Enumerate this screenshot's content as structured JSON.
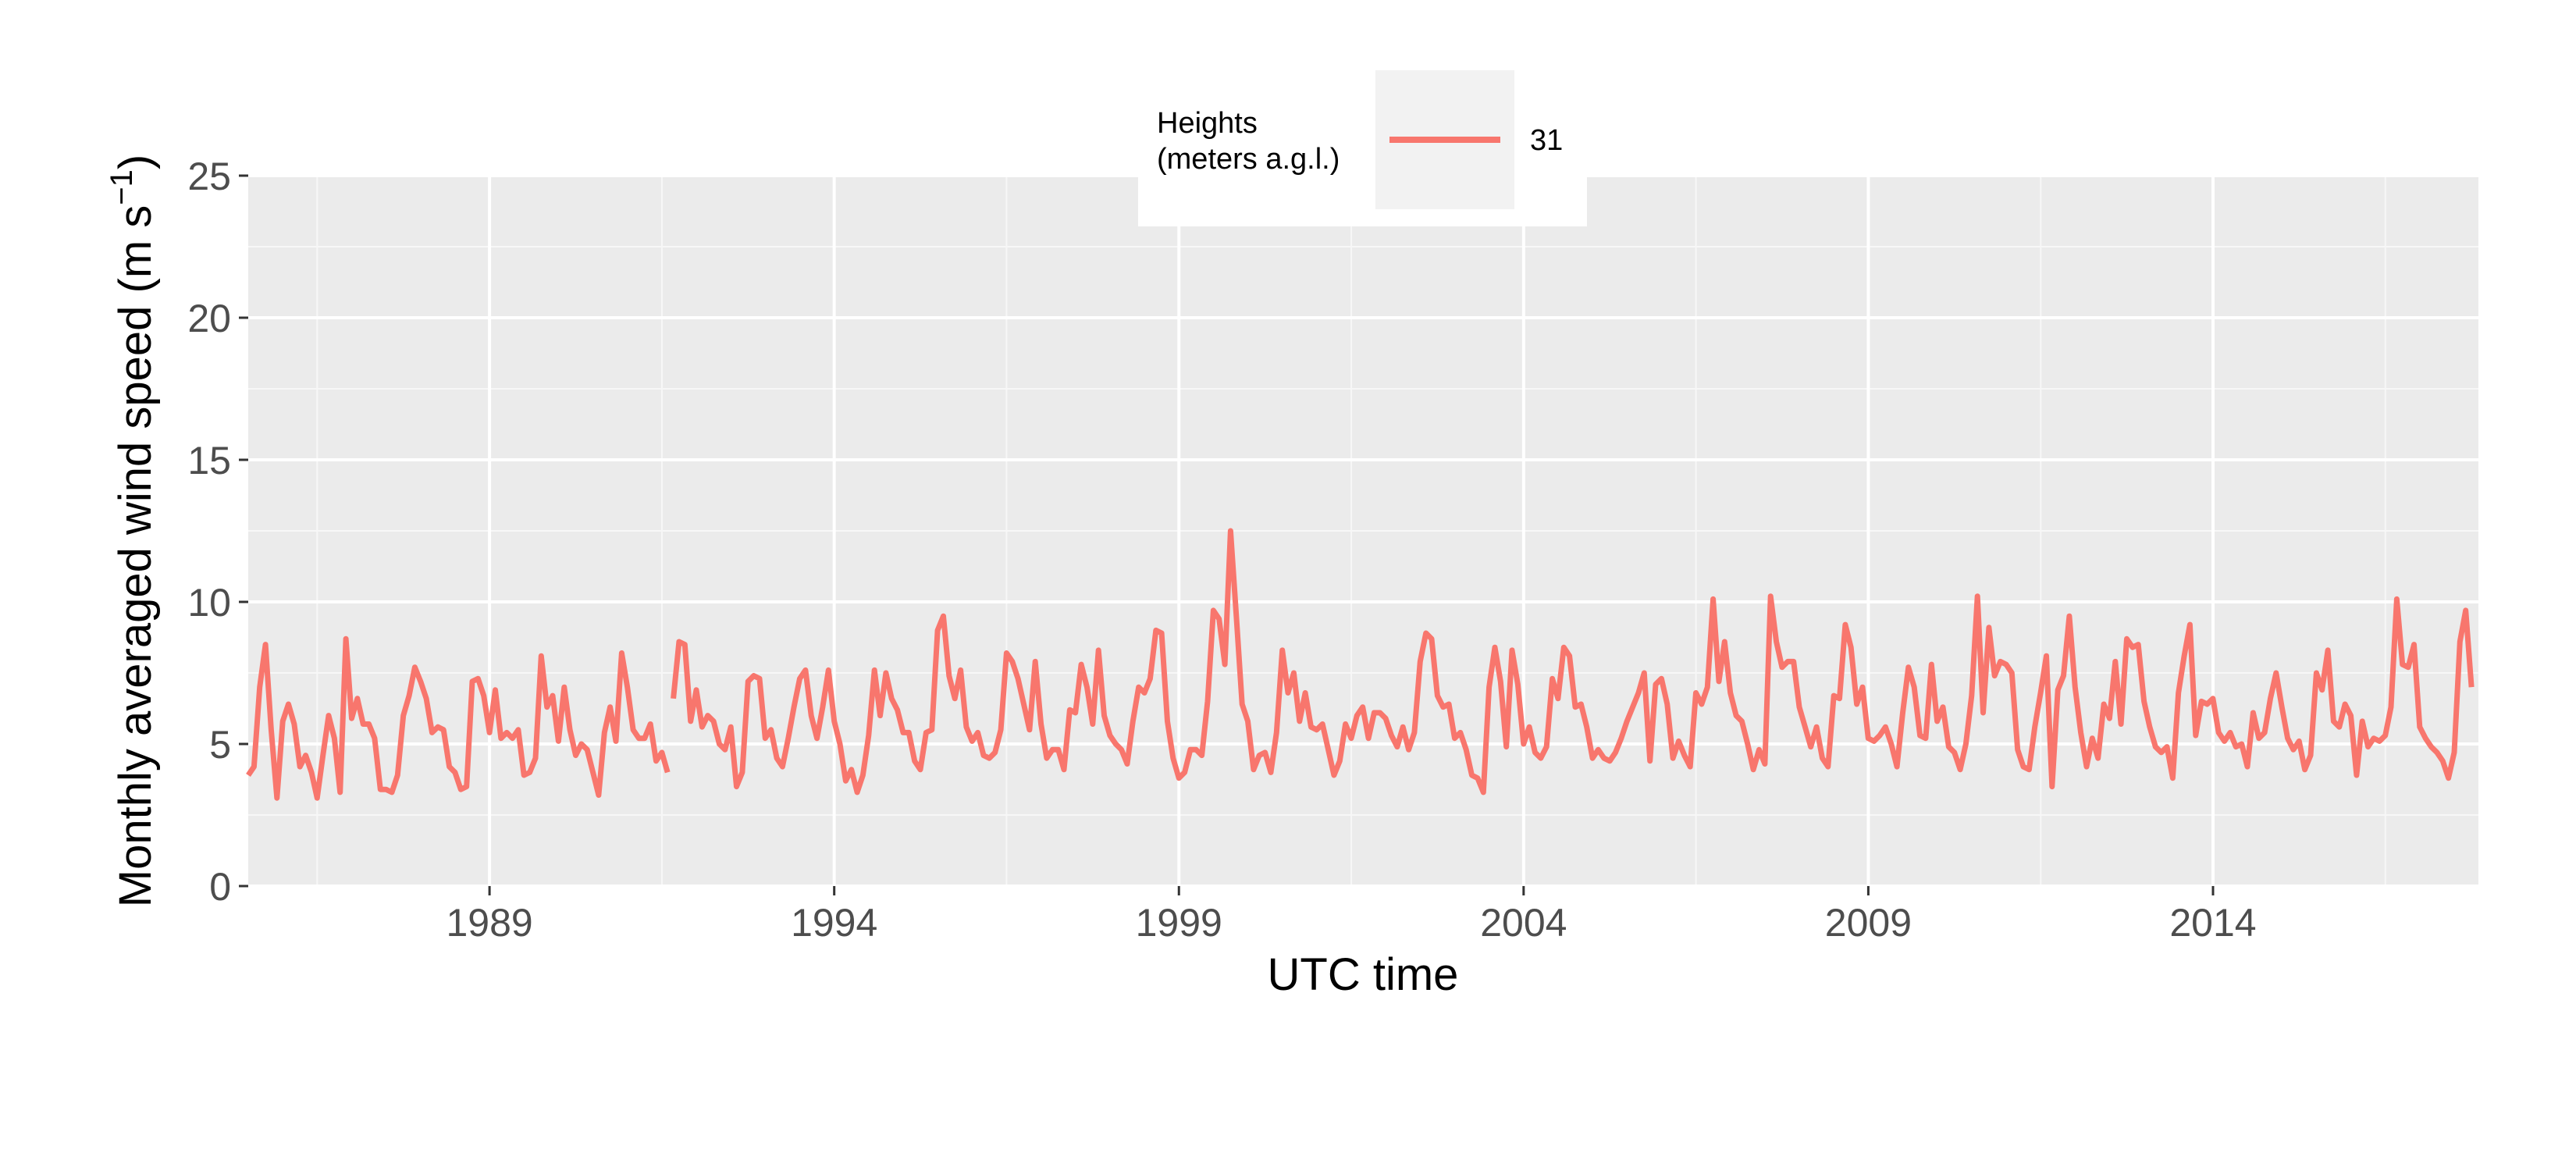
{
  "chart_data": {
    "type": "line",
    "xlabel": "UTC time",
    "ylabel_main": "Monthly averaged wind speed (m s",
    "ylabel_sup": "−1",
    "ylabel_close": ")",
    "xlim": [
      1985.5,
      2017.85
    ],
    "ylim": [
      0,
      25
    ],
    "x_ticks": [
      1989,
      1994,
      1999,
      2004,
      2009,
      2014
    ],
    "x_tick_labels": [
      "1989",
      "1994",
      "1999",
      "2004",
      "2009",
      "2014"
    ],
    "y_ticks": [
      0,
      5,
      10,
      15,
      20,
      25
    ],
    "y_tick_labels": [
      "0",
      "5",
      "10",
      "15",
      "20",
      "25"
    ],
    "grid": true,
    "legend": {
      "title_line1": "Heights",
      "title_line2": "(meters a.g.l.)",
      "placement": "top-center",
      "entries": [
        "31"
      ]
    },
    "series": [
      {
        "name": "31",
        "color": "#F8766D",
        "x_start": 1985.5,
        "step": 0.08333,
        "gaps_after_index": [
          73
        ],
        "values": [
          3.9,
          4.2,
          7.0,
          8.5,
          5.5,
          3.1,
          5.8,
          6.4,
          5.7,
          4.2,
          4.6,
          4.0,
          3.1,
          4.6,
          6.0,
          5.2,
          3.3,
          8.7,
          5.9,
          6.6,
          5.7,
          5.7,
          5.2,
          3.4,
          3.4,
          3.3,
          3.9,
          6.0,
          6.7,
          7.7,
          7.2,
          6.6,
          5.4,
          5.6,
          5.5,
          4.2,
          4.0,
          3.4,
          3.5,
          7.2,
          7.3,
          6.7,
          5.4,
          6.9,
          5.2,
          5.4,
          5.2,
          5.5,
          3.9,
          4.0,
          4.5,
          8.1,
          6.3,
          6.7,
          5.1,
          7.0,
          5.5,
          4.6,
          5.0,
          4.8,
          4.0,
          3.2,
          5.4,
          6.3,
          5.1,
          8.2,
          7.0,
          5.5,
          5.2,
          5.2,
          5.7,
          4.4,
          4.7,
          4.0,
          6.6,
          8.6,
          8.5,
          5.8,
          6.9,
          5.6,
          6.0,
          5.8,
          5.0,
          4.8,
          5.6,
          3.5,
          4.0,
          7.2,
          7.4,
          7.3,
          5.2,
          5.5,
          4.5,
          4.2,
          5.2,
          6.3,
          7.3,
          7.6,
          6.0,
          5.2,
          6.3,
          7.6,
          5.8,
          5.0,
          3.7,
          4.1,
          3.3,
          3.9,
          5.3,
          7.6,
          6.0,
          7.5,
          6.6,
          6.2,
          5.4,
          5.4,
          4.4,
          4.1,
          5.4,
          5.5,
          9.0,
          9.5,
          7.4,
          6.6,
          7.6,
          5.6,
          5.1,
          5.4,
          4.6,
          4.5,
          4.7,
          5.5,
          8.2,
          7.9,
          7.3,
          6.4,
          5.5,
          7.9,
          5.7,
          4.5,
          4.8,
          4.8,
          4.1,
          6.2,
          6.1,
          7.8,
          7.0,
          5.7,
          8.3,
          6.0,
          5.3,
          5.0,
          4.8,
          4.3,
          5.8,
          7.0,
          6.8,
          7.3,
          9.0,
          8.9,
          5.8,
          4.5,
          3.8,
          4.0,
          4.8,
          4.8,
          4.6,
          6.5,
          9.7,
          9.4,
          7.8,
          12.5,
          9.5,
          6.4,
          5.8,
          4.1,
          4.6,
          4.7,
          4.0,
          5.4,
          8.3,
          6.8,
          7.5,
          5.8,
          6.8,
          5.6,
          5.5,
          5.7,
          4.8,
          3.9,
          4.4,
          5.7,
          5.2,
          6.0,
          6.3,
          5.2,
          6.1,
          6.1,
          5.9,
          5.3,
          4.9,
          5.6,
          4.8,
          5.4,
          7.9,
          8.9,
          8.7,
          6.7,
          6.3,
          6.4,
          5.2,
          5.4,
          4.8,
          3.9,
          3.8,
          3.3,
          7.0,
          8.4,
          7.2,
          4.9,
          8.3,
          7.1,
          5.0,
          5.6,
          4.7,
          4.5,
          4.9,
          7.3,
          6.6,
          8.4,
          8.1,
          6.3,
          6.4,
          5.6,
          4.5,
          4.8,
          4.5,
          4.4,
          4.7,
          5.2,
          5.8,
          6.3,
          6.8,
          7.5,
          4.4,
          7.1,
          7.3,
          6.4,
          4.5,
          5.1,
          4.6,
          4.2,
          6.8,
          6.4,
          7.0,
          10.1,
          7.2,
          8.6,
          6.8,
          6.0,
          5.8,
          5.0,
          4.1,
          4.8,
          4.3,
          10.2,
          8.6,
          7.7,
          7.9,
          7.9,
          6.3,
          5.6,
          4.9,
          5.6,
          4.5,
          4.2,
          6.7,
          6.6,
          9.2,
          8.4,
          6.4,
          7.0,
          5.2,
          5.1,
          5.3,
          5.6,
          5.0,
          4.2,
          6.1,
          7.7,
          7.0,
          5.3,
          5.2,
          7.8,
          5.8,
          6.3,
          4.9,
          4.7,
          4.1,
          5.0,
          6.7,
          10.2,
          6.1,
          9.1,
          7.4,
          7.9,
          7.8,
          7.5,
          4.8,
          4.2,
          4.1,
          5.6,
          6.8,
          8.1,
          3.5,
          6.9,
          7.4,
          9.5,
          7.0,
          5.4,
          4.2,
          5.2,
          4.5,
          6.4,
          5.9,
          7.9,
          5.7,
          8.7,
          8.4,
          8.5,
          6.5,
          5.6,
          4.9,
          4.7,
          4.9,
          3.8,
          6.8,
          8.1,
          9.2,
          5.3,
          6.5,
          6.4,
          6.6,
          5.4,
          5.1,
          5.4,
          4.9,
          5.0,
          4.2,
          6.1,
          5.2,
          5.4,
          6.6,
          7.5,
          6.3,
          5.2,
          4.8,
          5.1,
          4.1,
          4.6,
          7.5,
          6.9,
          8.3,
          5.8,
          5.6,
          6.4,
          6.0,
          3.9,
          5.8,
          4.9,
          5.2,
          5.1,
          5.3,
          6.3,
          10.1,
          7.8,
          7.7,
          8.5,
          5.6,
          5.2,
          4.9,
          4.7,
          4.4,
          3.8,
          4.7,
          8.6,
          9.7,
          7.0
        ]
      }
    ]
  }
}
